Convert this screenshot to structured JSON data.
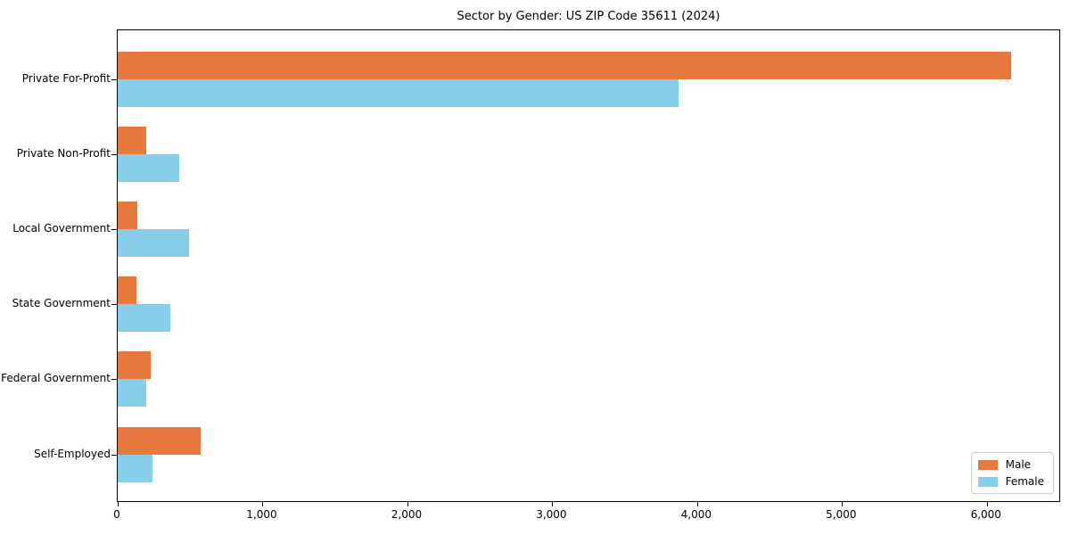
{
  "title": "Sector by Gender: US ZIP Code 35611 (2024)",
  "chart_data": {
    "type": "bar",
    "orientation": "horizontal",
    "title": "Sector by Gender: US ZIP Code 35611 (2024)",
    "categories": [
      "Private For-Profit",
      "Private Non-Profit",
      "Local Government",
      "State Government",
      "Federal Government",
      "Self-Employed"
    ],
    "series": [
      {
        "name": "Male",
        "color": "#e8793e",
        "values": [
          6170,
          200,
          135,
          130,
          225,
          570
        ]
      },
      {
        "name": "Female",
        "color": "#87ceeb",
        "values": [
          3870,
          425,
          490,
          365,
          195,
          240
        ]
      }
    ],
    "xlabel": "",
    "ylabel": "",
    "xlim": [
      0,
      6500
    ],
    "xticks": [
      0,
      1000,
      2000,
      3000,
      4000,
      5000,
      6000
    ],
    "xtick_labels": [
      "0",
      "1,000",
      "2,000",
      "3,000",
      "4,000",
      "5,000",
      "6,000"
    ],
    "grid": false,
    "legend_position": "lower right",
    "axis_color": "#000000",
    "background_color": "#ffffff"
  }
}
